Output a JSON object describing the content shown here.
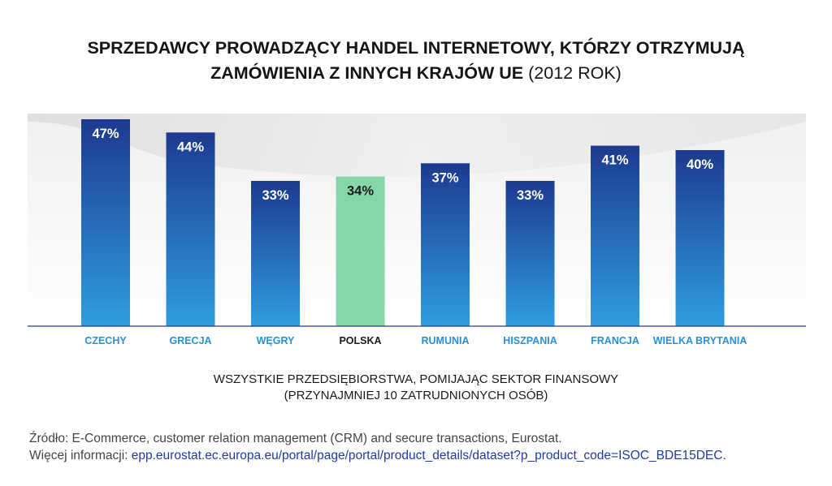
{
  "title": {
    "line1": "SPRZEDAWCY PROWADZĄCY HANDEL INTERNETOWY, KTÓRZY OTRZYMUJĄ",
    "line2_bold": "ZAMÓWIENIA Z INNYCH KRAJÓW UE",
    "line2_year": "(2012 ROK)"
  },
  "subtitle": {
    "line1": "WSZYSTKIE PRZEDSIĘBIORSTWA, POMIJAJĄC SEKTOR FINANSOWY",
    "line2": "(PRZYNAJMNIEJ 10 ZATRUDNIONYCH OSÓB)"
  },
  "source": {
    "line1": "Źródło: E-Commerce, customer relation management (CRM) and secure transactions, Eurostat.",
    "line2_prefix": "Więcej informacji: ",
    "line2_link": "epp.eurostat.ec.europa.eu/portal/page/portal/product_details/dataset?p_product_code=ISOC_BDE15DEC",
    "line2_suffix": "."
  },
  "colors": {
    "bar_top": "#1d3a8f",
    "bar_bottom": "#2f9de0",
    "highlight": "#86d6aa",
    "label_blue": "#2a8fd6",
    "label_highlight": "#1a1a1a",
    "axis": "#2b3a8a"
  },
  "chart_data": {
    "type": "bar",
    "title": "SPRZEDAWCY PROWADZĄCY HANDEL INTERNETOWY, KTÓRZY OTRZYMUJĄ ZAMÓWIENIA Z INNYCH KRAJÓW UE (2012 ROK)",
    "categories": [
      "CZECHY",
      "GRECJA",
      "WĘGRY",
      "POLSKA",
      "RUMUNIA",
      "HISZPANIA",
      "FRANCJA",
      "WIELKA BRYTANIA"
    ],
    "values": [
      47,
      44,
      33,
      34,
      37,
      33,
      41,
      40
    ],
    "value_labels": [
      "47%",
      "44%",
      "33%",
      "34%",
      "37%",
      "33%",
      "41%",
      "40%"
    ],
    "highlight_category": "POLSKA",
    "unit": "%",
    "xlabel": "WSZYSTKIE PRZEDSIĘBIORSTWA, POMIJAJĄC SEKTOR FINANSOWY (PRZYNAJMNIEJ 10 ZATRUDNIONYCH OSÓB)",
    "ylabel": "",
    "ylim": [
      0,
      47
    ],
    "grid": false
  }
}
